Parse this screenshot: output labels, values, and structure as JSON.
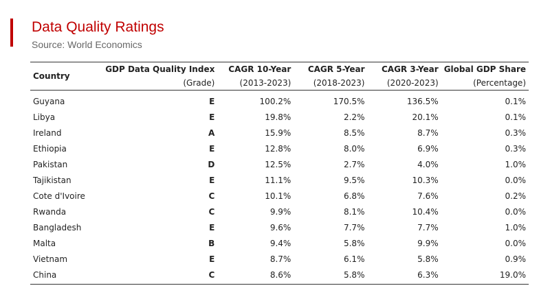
{
  "title": "Data Quality Ratings",
  "subtitle": "Source: World Economics",
  "colors": {
    "accent": "#c00000",
    "subtitle": "#666666",
    "text": "#222222",
    "rule": "#333333"
  },
  "table": {
    "headers": [
      {
        "main": "Country",
        "sub": ""
      },
      {
        "main": "GDP Data Quality Index",
        "sub": "(Grade)"
      },
      {
        "main": "CAGR 10-Year",
        "sub": "(2013-2023)"
      },
      {
        "main": "CAGR 5-Year",
        "sub": "(2018-2023)"
      },
      {
        "main": "CAGR 3-Year",
        "sub": "(2020-2023)"
      },
      {
        "main": "Global GDP Share",
        "sub": "(Percentage)"
      }
    ],
    "rows": [
      [
        "Guyana",
        "E",
        "100.2%",
        "170.5%",
        "136.5%",
        "0.1%"
      ],
      [
        "Libya",
        "E",
        "19.8%",
        "2.2%",
        "20.1%",
        "0.1%"
      ],
      [
        "Ireland",
        "A",
        "15.9%",
        "8.5%",
        "8.7%",
        "0.3%"
      ],
      [
        "Ethiopia",
        "E",
        "12.8%",
        "8.0%",
        "6.9%",
        "0.3%"
      ],
      [
        "Pakistan",
        "D",
        "12.5%",
        "2.7%",
        "4.0%",
        "1.0%"
      ],
      [
        "Tajikistan",
        "E",
        "11.1%",
        "9.5%",
        "10.3%",
        "0.0%"
      ],
      [
        "Cote d'Ivoire",
        "C",
        "10.1%",
        "6.8%",
        "7.6%",
        "0.2%"
      ],
      [
        "Rwanda",
        "C",
        "9.9%",
        "8.1%",
        "10.4%",
        "0.0%"
      ],
      [
        "Bangladesh",
        "E",
        "9.6%",
        "7.7%",
        "7.7%",
        "1.0%"
      ],
      [
        "Malta",
        "B",
        "9.4%",
        "5.8%",
        "9.9%",
        "0.0%"
      ],
      [
        "Vietnam",
        "E",
        "8.7%",
        "6.1%",
        "5.8%",
        "0.9%"
      ],
      [
        "China",
        "C",
        "8.6%",
        "5.8%",
        "6.3%",
        "19.0%"
      ]
    ]
  }
}
